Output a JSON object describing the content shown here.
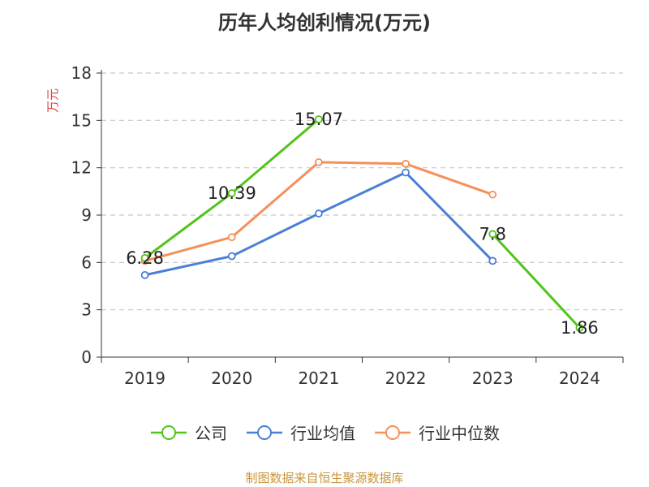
{
  "chart_data": {
    "type": "line",
    "title": "历年人均创利情况(万元)",
    "ylabel": "万元",
    "xlabel": "",
    "categories": [
      "2019",
      "2020",
      "2021",
      "2022",
      "2023",
      "2024"
    ],
    "ylim": [
      0,
      18
    ],
    "yticks": [
      0,
      3,
      6,
      9,
      12,
      15,
      18
    ],
    "grid": true,
    "legend_position": "bottom",
    "series": [
      {
        "name": "公司",
        "color": "#52c41a",
        "values": [
          6.28,
          10.39,
          15.07,
          null,
          7.8,
          1.86
        ],
        "labels": [
          "6.28",
          "10.39",
          "15.07",
          "",
          "7.8",
          "1.86"
        ]
      },
      {
        "name": "行业均值",
        "color": "#4a7fd6",
        "values": [
          5.2,
          6.4,
          9.1,
          11.7,
          6.1,
          null
        ]
      },
      {
        "name": "行业中位数",
        "color": "#f59058",
        "values": [
          6.1,
          7.6,
          12.35,
          12.25,
          10.3,
          null
        ]
      }
    ]
  },
  "footer": {
    "source": "制图数据来自恒生聚源数据库"
  }
}
